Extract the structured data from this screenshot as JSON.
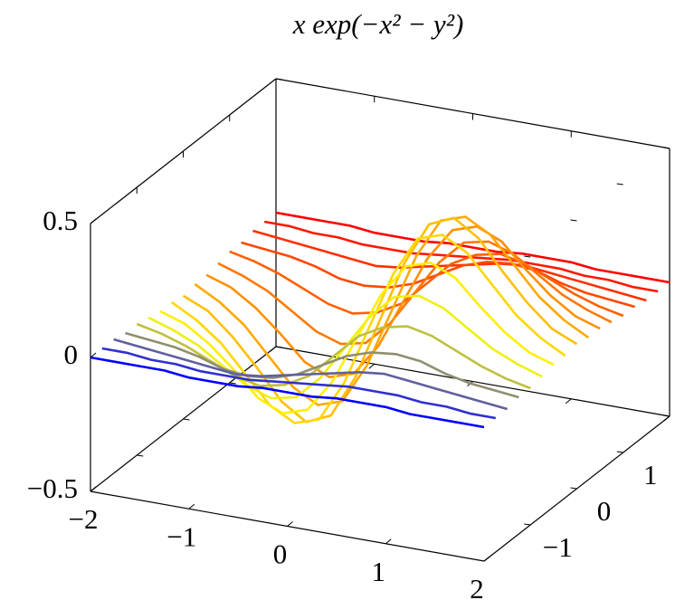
{
  "chart_data": {
    "type": "waterfall3d",
    "title": "x exp(−x² − y²)",
    "x": [
      -2,
      -1.75,
      -1.5,
      -1.25,
      -1,
      -0.75,
      -0.5,
      -0.25,
      0,
      0.25,
      0.5,
      0.75,
      1,
      1.25,
      1.5,
      1.75,
      2
    ],
    "xlim": [
      -2,
      2
    ],
    "ylim": [
      -2,
      2
    ],
    "zlim": [
      -0.5,
      0.5
    ],
    "xticks": [
      {
        "value": -2,
        "label": "−2"
      },
      {
        "value": -1,
        "label": "−1"
      },
      0,
      1,
      2
    ],
    "yticks": [
      {
        "value": -1,
        "label": "−1"
      },
      0,
      1
    ],
    "zticks": [
      {
        "value": -0.5,
        "label": "−0.5"
      },
      0,
      0.5
    ],
    "series": [
      {
        "y": -2,
        "color": "#0000ff",
        "values": [
          0,
          0,
          0,
          0,
          -0.01,
          -0.01,
          -0.01,
          0,
          0,
          0,
          0.01,
          0.01,
          0.01,
          0,
          0,
          0,
          0
        ]
      },
      {
        "y": -1.75,
        "color": "#3030cf",
        "values": [
          0,
          0,
          -0.01,
          -0.01,
          -0.02,
          -0.02,
          -0.02,
          -0.01,
          0,
          0.01,
          0.02,
          0.02,
          0.02,
          0.01,
          0.01,
          0,
          0
        ]
      },
      {
        "y": -1.5,
        "color": "#60609f",
        "values": [
          0,
          -0.01,
          -0.02,
          -0.03,
          -0.04,
          -0.05,
          -0.04,
          -0.02,
          0,
          0.02,
          0.04,
          0.05,
          0.04,
          0.03,
          0.02,
          0.01,
          0
        ]
      },
      {
        "y": -1.25,
        "color": "#8f8f70",
        "values": [
          -0.01,
          -0.02,
          -0.03,
          -0.05,
          -0.08,
          -0.09,
          -0.08,
          -0.05,
          0,
          0.05,
          0.08,
          0.09,
          0.08,
          0.05,
          0.03,
          0.02,
          0.01
        ]
      },
      {
        "y": -1,
        "color": "#bfbf40",
        "values": [
          -0.01,
          -0.03,
          -0.06,
          -0.1,
          -0.14,
          -0.16,
          -0.14,
          -0.09,
          0,
          0.09,
          0.14,
          0.16,
          0.14,
          0.1,
          0.06,
          0.03,
          0.01
        ]
      },
      {
        "y": -0.75,
        "color": "#efef10",
        "values": [
          -0.02,
          -0.05,
          -0.09,
          -0.15,
          -0.21,
          -0.24,
          -0.22,
          -0.13,
          0,
          0.13,
          0.22,
          0.24,
          0.21,
          0.15,
          0.09,
          0.05,
          0.02
        ]
      },
      {
        "y": -0.5,
        "color": "#ffef00",
        "values": [
          -0.03,
          -0.06,
          -0.12,
          -0.2,
          -0.29,
          -0.33,
          -0.3,
          -0.18,
          0,
          0.18,
          0.3,
          0.33,
          0.29,
          0.2,
          0.12,
          0.06,
          0.03
        ]
      },
      {
        "y": -0.25,
        "color": "#ffd700",
        "values": [
          -0.03,
          -0.08,
          -0.15,
          -0.25,
          -0.35,
          -0.4,
          -0.37,
          -0.22,
          0,
          0.22,
          0.37,
          0.4,
          0.35,
          0.25,
          0.15,
          0.08,
          0.03
        ]
      },
      {
        "y": 0,
        "color": "#ffbf00",
        "values": [
          -0.04,
          -0.08,
          -0.16,
          -0.26,
          -0.37,
          -0.43,
          -0.39,
          -0.23,
          0,
          0.23,
          0.39,
          0.43,
          0.37,
          0.26,
          0.16,
          0.08,
          0.04
        ]
      },
      {
        "y": 0.25,
        "color": "#ffa800",
        "values": [
          -0.03,
          -0.08,
          -0.15,
          -0.25,
          -0.35,
          -0.4,
          -0.37,
          -0.22,
          0,
          0.22,
          0.37,
          0.4,
          0.35,
          0.25,
          0.15,
          0.08,
          0.03
        ]
      },
      {
        "y": 0.5,
        "color": "#ff9000",
        "values": [
          -0.03,
          -0.06,
          -0.12,
          -0.2,
          -0.29,
          -0.33,
          -0.3,
          -0.18,
          0,
          0.18,
          0.3,
          0.33,
          0.29,
          0.2,
          0.12,
          0.06,
          0.03
        ]
      },
      {
        "y": 0.75,
        "color": "#ff7800",
        "values": [
          -0.02,
          -0.05,
          -0.09,
          -0.15,
          -0.21,
          -0.24,
          -0.22,
          -0.13,
          0,
          0.13,
          0.22,
          0.24,
          0.21,
          0.15,
          0.09,
          0.05,
          0.02
        ]
      },
      {
        "y": 1,
        "color": "#ff6000",
        "values": [
          -0.01,
          -0.03,
          -0.06,
          -0.1,
          -0.14,
          -0.16,
          -0.14,
          -0.09,
          0,
          0.09,
          0.14,
          0.16,
          0.14,
          0.1,
          0.06,
          0.03,
          0.01
        ]
      },
      {
        "y": 1.25,
        "color": "#ff4800",
        "values": [
          -0.01,
          -0.02,
          -0.03,
          -0.05,
          -0.08,
          -0.09,
          -0.08,
          -0.05,
          0,
          0.05,
          0.08,
          0.09,
          0.08,
          0.05,
          0.03,
          0.02,
          0.01
        ]
      },
      {
        "y": 1.5,
        "color": "#ff3000",
        "values": [
          0,
          -0.01,
          -0.02,
          -0.03,
          -0.04,
          -0.05,
          -0.04,
          -0.02,
          0,
          0.02,
          0.04,
          0.05,
          0.04,
          0.03,
          0.02,
          0.01,
          0
        ]
      },
      {
        "y": 1.75,
        "color": "#ff1800",
        "values": [
          0,
          0,
          -0.01,
          -0.01,
          -0.02,
          -0.02,
          -0.02,
          -0.01,
          0,
          0.01,
          0.02,
          0.02,
          0.02,
          0.01,
          0.01,
          0,
          0
        ]
      },
      {
        "y": 2,
        "color": "#ff0000",
        "values": [
          0,
          0,
          0,
          0,
          -0.01,
          -0.01,
          -0.01,
          0,
          0,
          0,
          0.01,
          0.01,
          0.01,
          0,
          0,
          0,
          0
        ]
      }
    ]
  }
}
